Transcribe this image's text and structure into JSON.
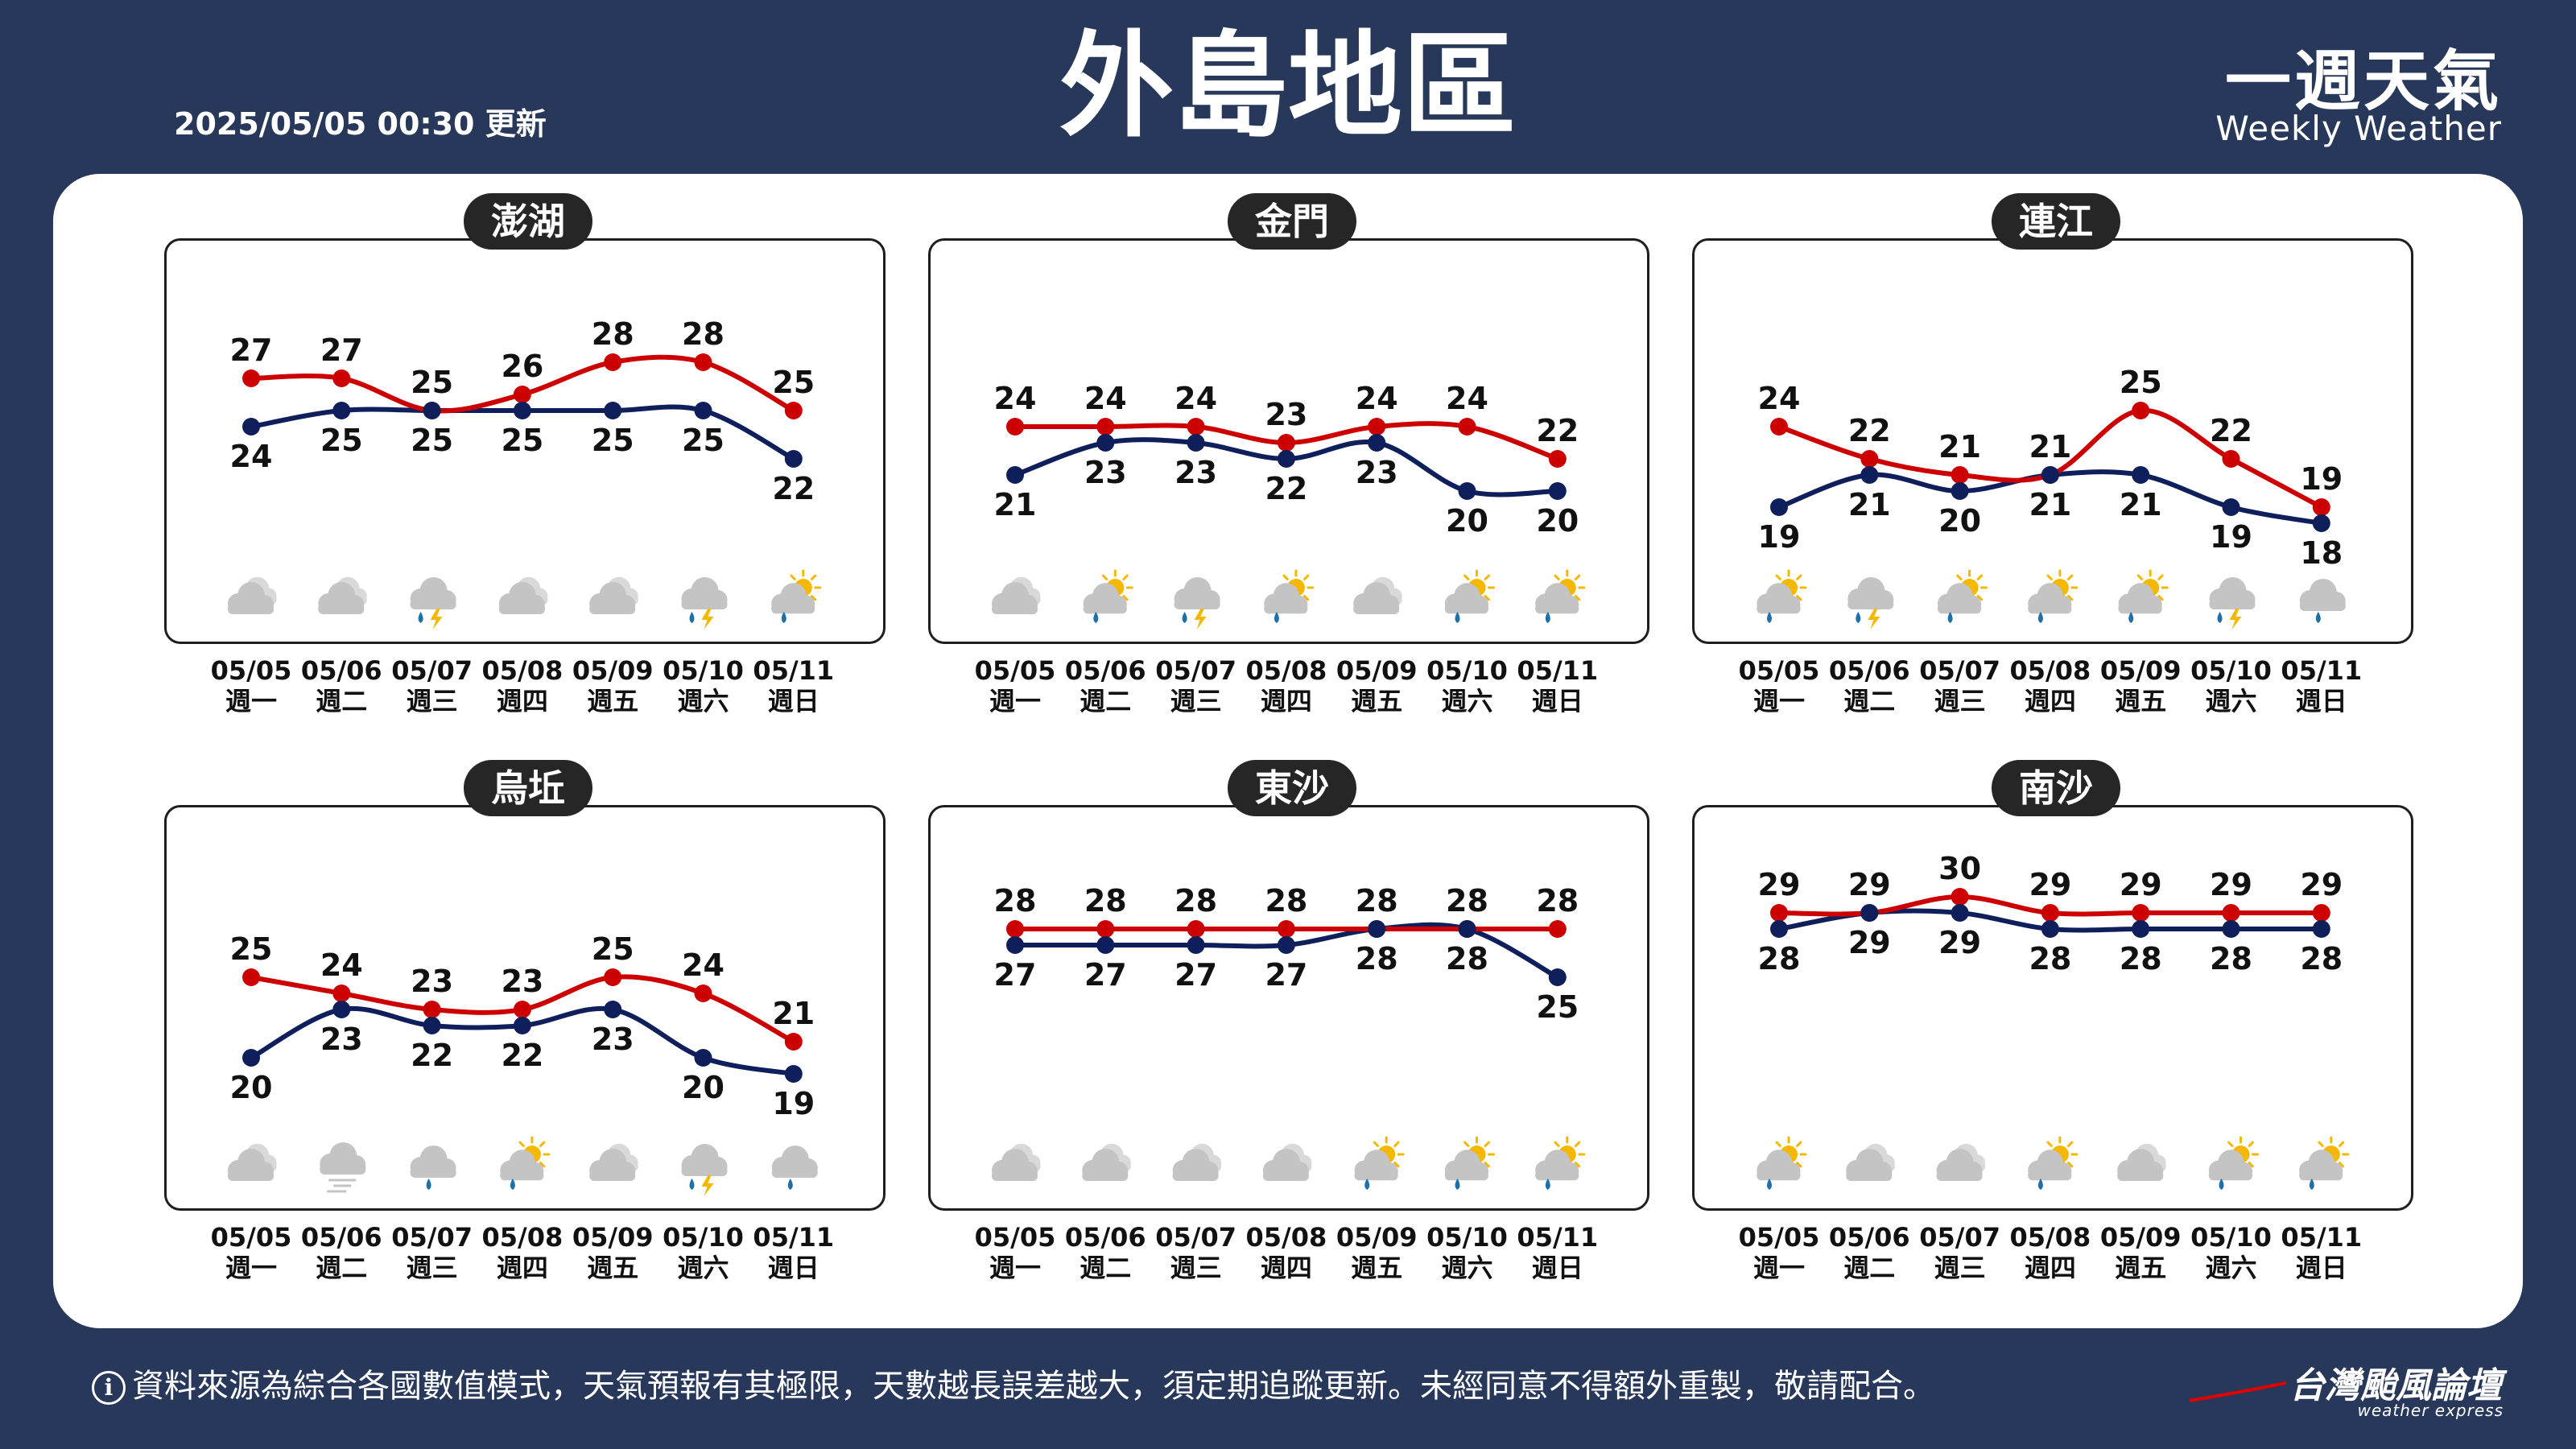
{
  "header": {
    "title": "外島地區",
    "update_time": "2025/05/05 00:30 更新",
    "brand_zh": "一週天氣",
    "brand_en": "Weekly Weather"
  },
  "footer": {
    "note": "資料來源為綜合各國數值模式，天氣預報有其極限，天數越長誤差越大，須定期追蹤更新。未經同意不得額外重製，敬請配合。",
    "brand": "台灣颱風論壇",
    "brand_sub": "weather express"
  },
  "colors": {
    "high": "#cc0000",
    "low": "#0f1f5c",
    "cloud": "#c4c4c4",
    "sun": "#f5b800",
    "rain": "#1f6fa8",
    "lightning": "#f5b800"
  },
  "dates": [
    "05/05",
    "05/06",
    "05/07",
    "05/08",
    "05/09",
    "05/10",
    "05/11"
  ],
  "weekdays": [
    "週一",
    "週二",
    "週三",
    "週四",
    "週五",
    "週六",
    "週日"
  ],
  "chart_data": [
    {
      "type": "line",
      "title": "澎湖",
      "categories": [
        "05/05",
        "05/06",
        "05/07",
        "05/08",
        "05/09",
        "05/10",
        "05/11"
      ],
      "ylim": [
        17,
        31
      ],
      "series": [
        {
          "values": [
            27,
            27,
            25,
            26,
            28,
            28,
            25
          ]
        },
        {
          "values": [
            24,
            25,
            25,
            25,
            25,
            25,
            22
          ]
        }
      ],
      "icons": [
        "cloudy",
        "cloudy",
        "thunder-rain",
        "cloudy",
        "cloudy",
        "thunder-rain",
        "sun-rain"
      ]
    },
    {
      "type": "line",
      "title": "金門",
      "categories": [
        "05/05",
        "05/06",
        "05/07",
        "05/08",
        "05/09",
        "05/10",
        "05/11"
      ],
      "ylim": [
        17,
        31
      ],
      "series": [
        {
          "values": [
            24,
            24,
            24,
            23,
            24,
            24,
            22
          ]
        },
        {
          "values": [
            21,
            23,
            23,
            22,
            23,
            20,
            20
          ]
        }
      ],
      "icons": [
        "cloudy",
        "sun-rain",
        "thunder-rain",
        "sun-rain",
        "cloudy",
        "sun-rain",
        "sun-rain"
      ]
    },
    {
      "type": "line",
      "title": "連江",
      "categories": [
        "05/05",
        "05/06",
        "05/07",
        "05/08",
        "05/09",
        "05/10",
        "05/11"
      ],
      "ylim": [
        17,
        31
      ],
      "series": [
        {
          "values": [
            24,
            22,
            21,
            21,
            25,
            22,
            19
          ]
        },
        {
          "values": [
            19,
            21,
            20,
            21,
            21,
            19,
            18
          ]
        }
      ],
      "icons": [
        "sun-rain",
        "thunder-rain",
        "sun-rain",
        "sun-rain",
        "sun-rain",
        "thunder-rain",
        "rain"
      ]
    },
    {
      "type": "line",
      "title": "烏坵",
      "categories": [
        "05/05",
        "05/06",
        "05/07",
        "05/08",
        "05/09",
        "05/10",
        "05/11"
      ],
      "ylim": [
        17,
        31
      ],
      "series": [
        {
          "values": [
            25,
            24,
            23,
            23,
            25,
            24,
            21
          ]
        },
        {
          "values": [
            20,
            23,
            22,
            22,
            23,
            20,
            19
          ]
        }
      ],
      "icons": [
        "cloudy",
        "fog",
        "rain",
        "sun-rain",
        "cloudy",
        "thunder-rain",
        "rain"
      ]
    },
    {
      "type": "line",
      "title": "東沙",
      "categories": [
        "05/05",
        "05/06",
        "05/07",
        "05/08",
        "05/09",
        "05/10",
        "05/11"
      ],
      "ylim": [
        17,
        31
      ],
      "series": [
        {
          "values": [
            28,
            28,
            28,
            28,
            28,
            28,
            28
          ]
        },
        {
          "values": [
            27,
            27,
            27,
            27,
            28,
            28,
            25
          ]
        }
      ],
      "icons": [
        "cloudy",
        "cloudy",
        "cloudy",
        "cloudy",
        "sun-rain",
        "sun-rain",
        "sun-rain"
      ]
    },
    {
      "type": "line",
      "title": "南沙",
      "categories": [
        "05/05",
        "05/06",
        "05/07",
        "05/08",
        "05/09",
        "05/10",
        "05/11"
      ],
      "ylim": [
        17,
        31
      ],
      "series": [
        {
          "values": [
            29,
            29,
            30,
            29,
            29,
            29,
            29
          ]
        },
        {
          "values": [
            28,
            29,
            29,
            28,
            28,
            28,
            28
          ]
        }
      ],
      "icons": [
        "sun-rain",
        "cloudy",
        "cloudy",
        "sun-rain",
        "cloudy",
        "sun-rain",
        "sun-rain"
      ]
    }
  ]
}
